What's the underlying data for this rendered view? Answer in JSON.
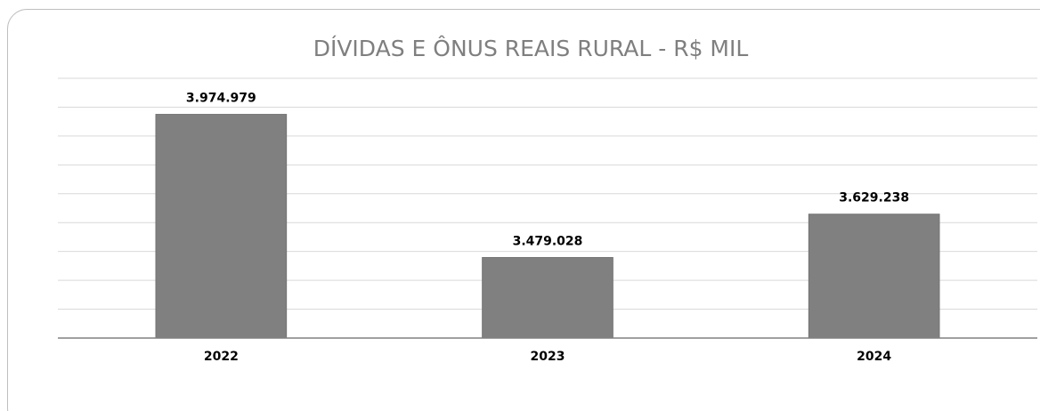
{
  "chart_data": {
    "type": "bar",
    "title": "DÍVIDAS E ÔNUS REAIS RURAL - R$ MIL",
    "categories": [
      "2022",
      "2023",
      "2024"
    ],
    "values": [
      3974979,
      3479028,
      3629238
    ],
    "value_labels": [
      "3.974.979",
      "3.479.028",
      "3.629.238"
    ],
    "color": "#808080",
    "ylim": [
      3200000,
      4100000
    ],
    "yticks": [
      3200000,
      3300000,
      3400000,
      3500000,
      3600000,
      3700000,
      3800000,
      3900000,
      4000000,
      4100000
    ],
    "grid": true
  }
}
